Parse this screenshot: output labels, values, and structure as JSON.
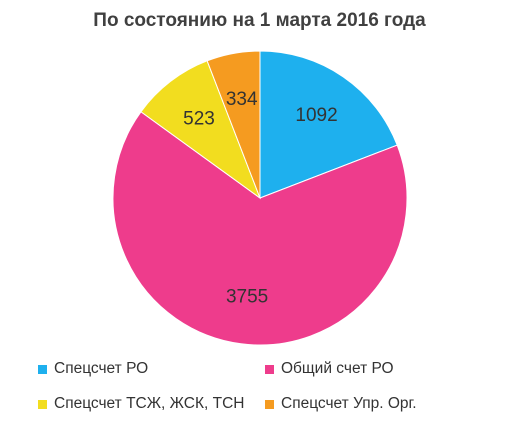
{
  "chart_data": {
    "type": "pie",
    "title": "По состоянию на 1 марта 2016 года",
    "start_angle_deg": 0,
    "direction": "clockwise",
    "slices": [
      {
        "label": "Спецсчет РО",
        "value": 1092,
        "color": "#1EB0EE"
      },
      {
        "label": "Общий счет РО",
        "value": 3755,
        "color": "#EE3C8C"
      },
      {
        "label": "Спецсчет ТСЖ, ЖСК, ТСН",
        "value": 523,
        "color": "#F2DD1F"
      },
      {
        "label": "Спецсчет Упр. Орг.",
        "value": 334,
        "color": "#F59B20"
      }
    ],
    "legend": {
      "position": "bottom",
      "columns": 2
    }
  }
}
